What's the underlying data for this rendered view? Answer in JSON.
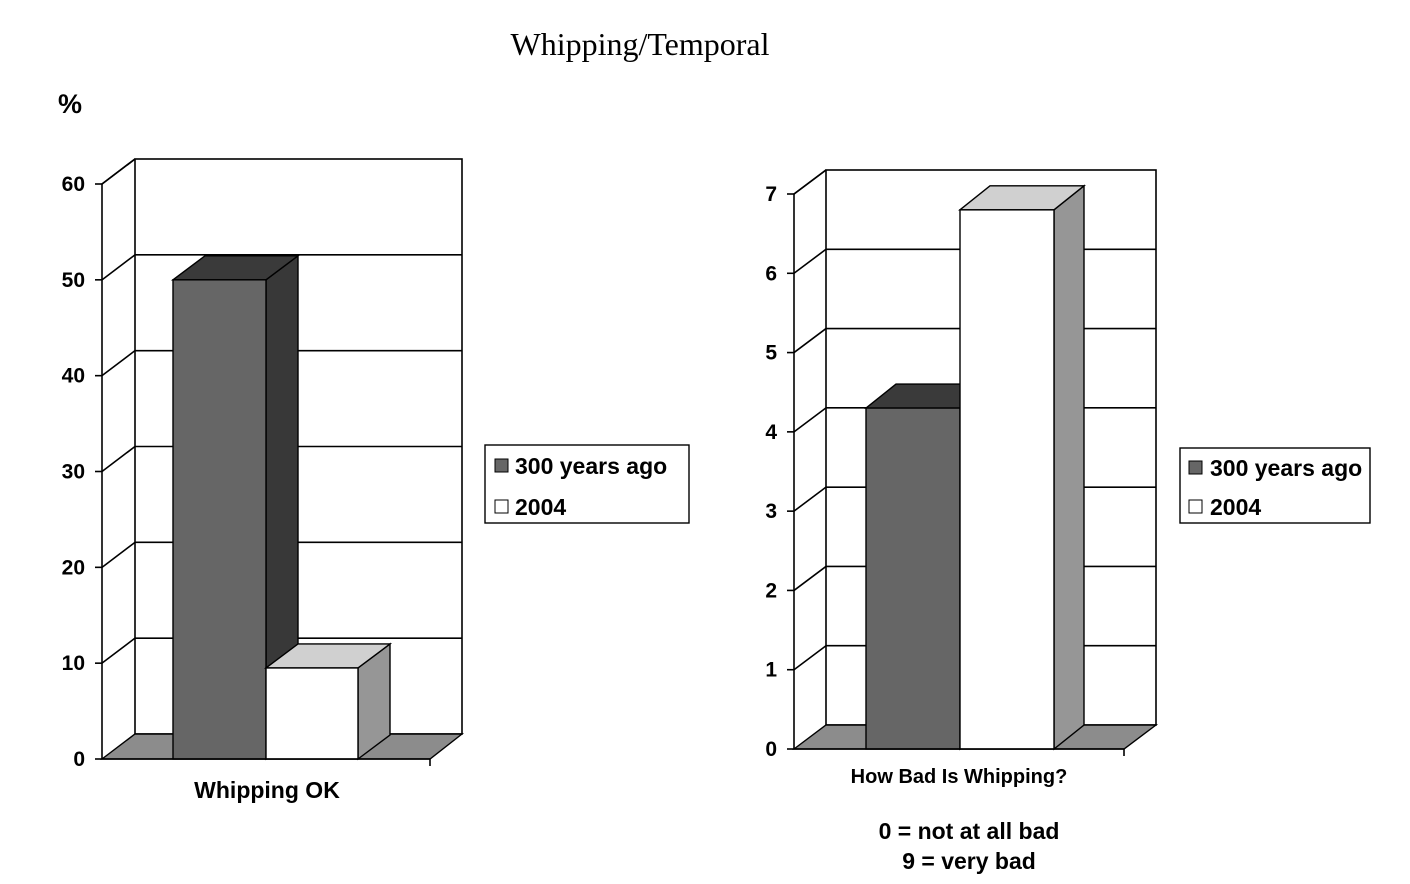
{
  "title": "Whipping/Temporal",
  "colors": {
    "series1_front": "#666666",
    "series1_side": "#383838",
    "series2_front": "#ffffff",
    "series2_top": "#d0d0d0",
    "series2_side": "#969696",
    "floor": "#8c8c8c"
  },
  "chart_data": [
    {
      "type": "bar",
      "ylabel": "%",
      "categories": [
        "Whipping OK"
      ],
      "ylim": [
        0,
        60
      ],
      "yticks": [
        "0",
        "10",
        "20",
        "30",
        "40",
        "50",
        "60"
      ],
      "grid": true,
      "legend_position": "right",
      "series": [
        {
          "name": "300 years ago",
          "values": [
            50
          ]
        },
        {
          "name": "2004",
          "values": [
            9.5
          ]
        }
      ]
    },
    {
      "type": "bar",
      "ylabel": "",
      "categories": [
        "How Bad Is Whipping?"
      ],
      "ylim": [
        0,
        7
      ],
      "yticks": [
        "0",
        "1",
        "2",
        "3",
        "4",
        "5",
        "6",
        "7"
      ],
      "grid": true,
      "legend_position": "right",
      "annotation_lines": [
        "0 = not at all bad",
        "9 = very bad"
      ],
      "series": [
        {
          "name": "300 years ago",
          "values": [
            4.3
          ]
        },
        {
          "name": "2004",
          "values": [
            6.8
          ]
        }
      ]
    }
  ]
}
